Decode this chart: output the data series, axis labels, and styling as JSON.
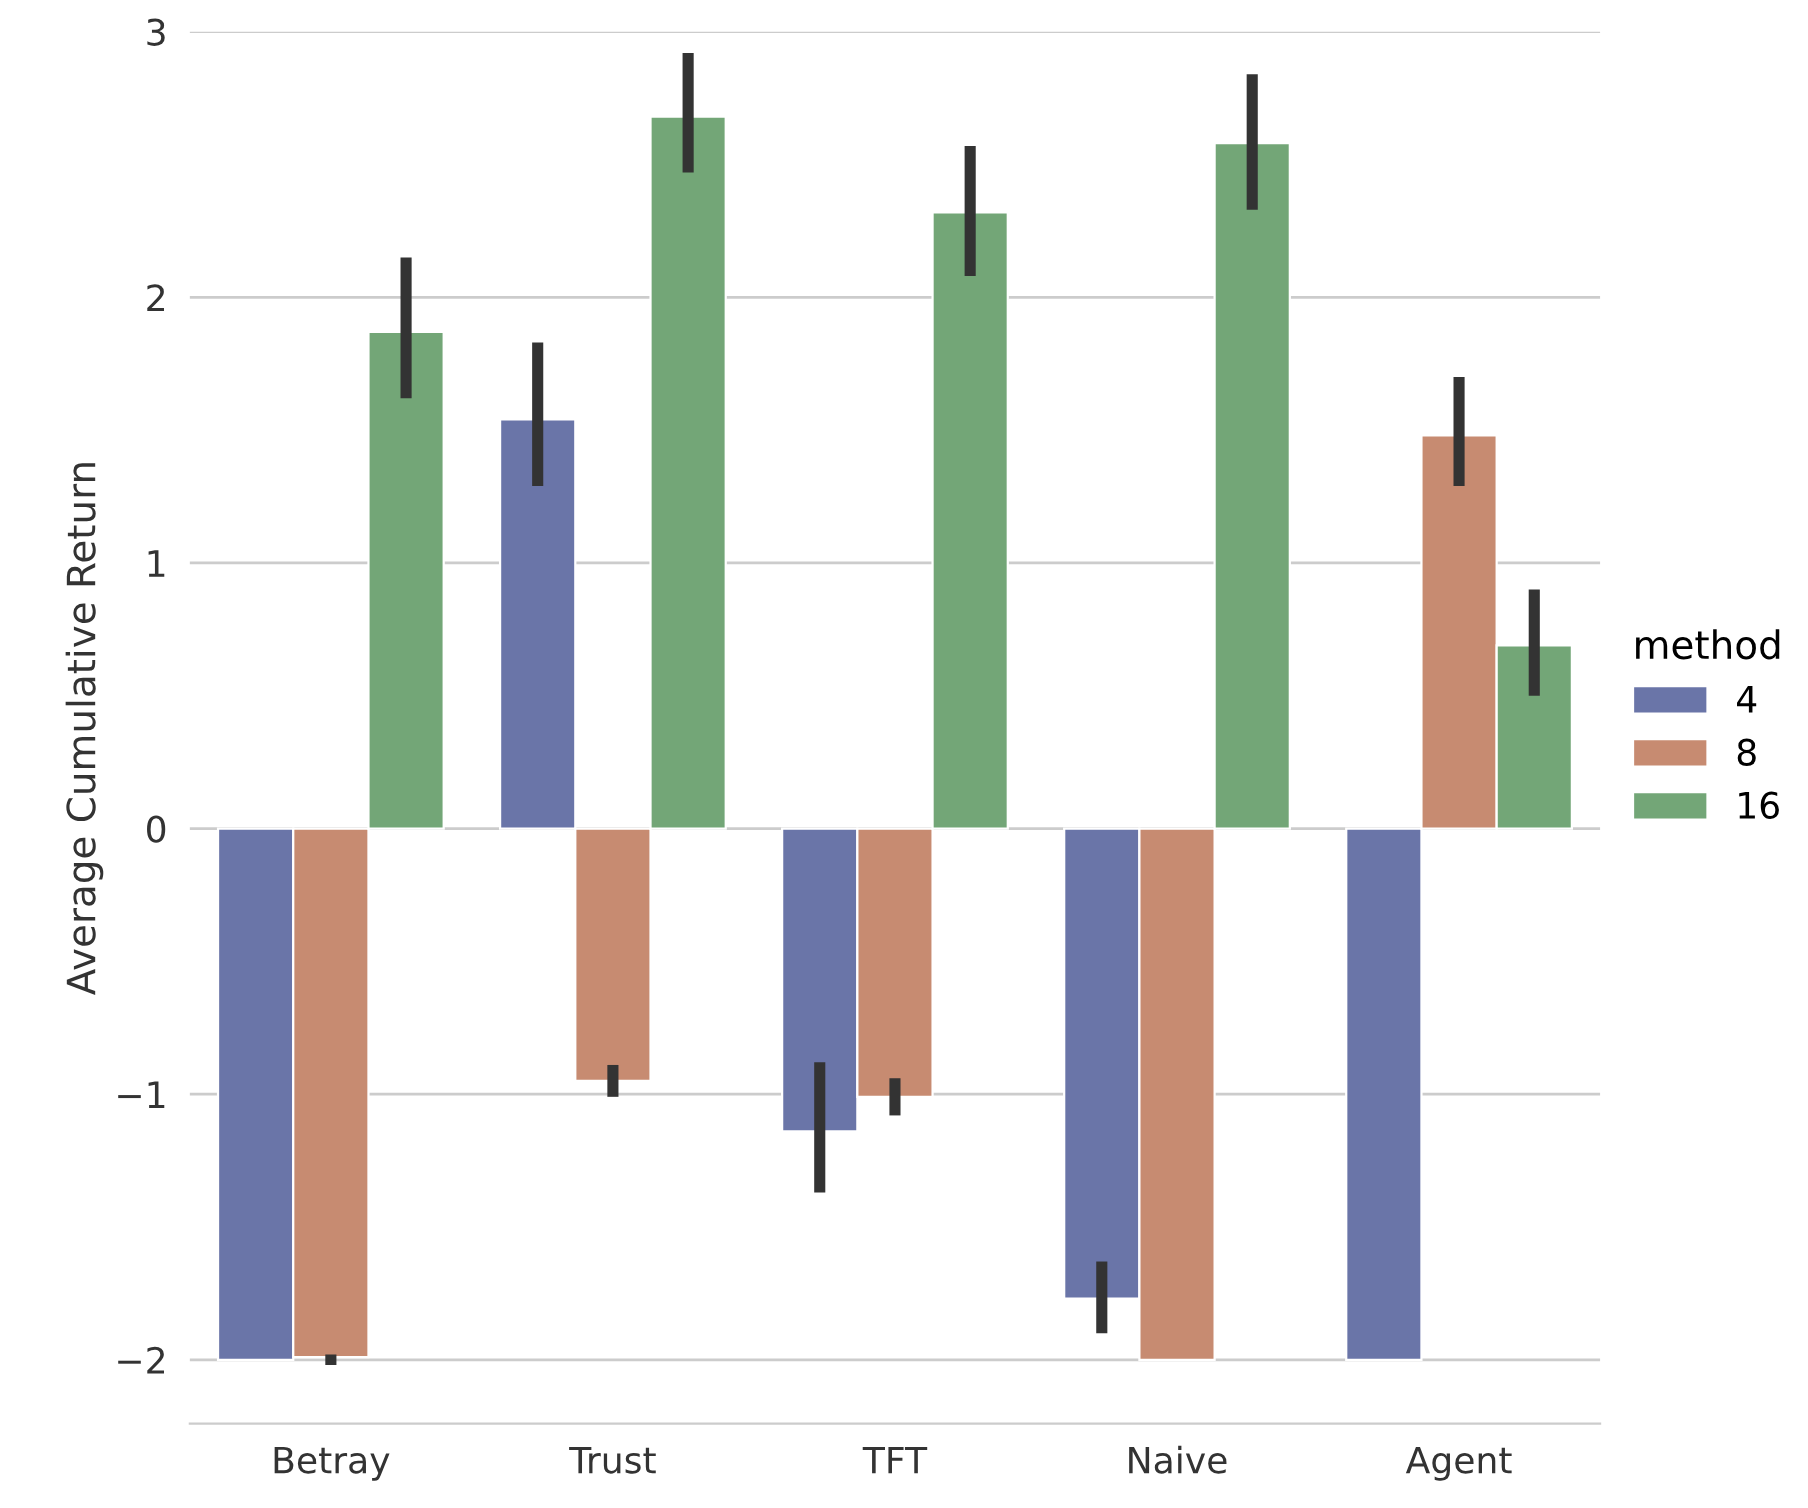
{
  "chart_data": {
    "type": "bar",
    "ylabel": "Average Cumulative Return",
    "legend_title": "method",
    "categories": [
      "Betray",
      "Trust",
      "TFT",
      "Naive",
      "Agent"
    ],
    "series": [
      {
        "name": "4",
        "color": "#6a75a8",
        "values": [
          -2.0,
          1.54,
          -1.14,
          -1.77,
          -2.0
        ],
        "errors": [
          null,
          [
            1.29,
            1.83
          ],
          [
            -1.37,
            -0.88
          ],
          [
            -1.9,
            -1.63
          ],
          null
        ]
      },
      {
        "name": "8",
        "color": "#c78b71",
        "values": [
          -1.99,
          -0.95,
          -1.01,
          -2.0,
          1.48
        ],
        "errors": [
          [
            -2.02,
            -1.98
          ],
          [
            -1.01,
            -0.89
          ],
          [
            -1.08,
            -0.94
          ],
          null,
          [
            1.29,
            1.7
          ]
        ]
      },
      {
        "name": "16",
        "color": "#73a677",
        "values": [
          1.87,
          2.68,
          2.32,
          2.58,
          0.69
        ],
        "errors": [
          [
            1.62,
            2.15
          ],
          [
            2.47,
            2.92
          ],
          [
            2.08,
            2.57
          ],
          [
            2.33,
            2.84
          ],
          [
            0.5,
            0.9
          ]
        ]
      }
    ],
    "ylim": [
      -2.24,
      3
    ],
    "yticks": [
      -2,
      -1,
      0,
      1,
      2,
      3
    ],
    "grid": "y",
    "legend": "right"
  }
}
